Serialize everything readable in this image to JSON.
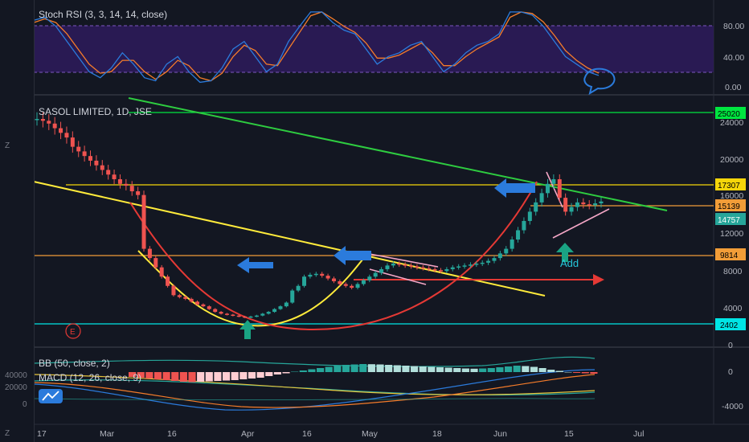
{
  "chart_data": {
    "type": "candlestick",
    "x_ticks": [
      "17",
      "Mar",
      "16",
      "Apr",
      "16",
      "May",
      "18",
      "Jun",
      "15",
      "Jul"
    ],
    "stoch_panel": {
      "title": "Stoch RSI (3, 3, 14, 14, close)",
      "y_ticks": [
        "80.00",
        "40.00",
        "0.00"
      ],
      "k": [
        88,
        92,
        80,
        60,
        40,
        20,
        12,
        25,
        45,
        30,
        12,
        8,
        30,
        40,
        20,
        6,
        8,
        25,
        50,
        60,
        40,
        20,
        30,
        60,
        80,
        99,
        99,
        85,
        75,
        70,
        50,
        30,
        40,
        45,
        55,
        60,
        40,
        20,
        30,
        45,
        55,
        60,
        70,
        99,
        99,
        95,
        80,
        60,
        40,
        30,
        20,
        15
      ],
      "d": [
        85,
        90,
        85,
        70,
        50,
        30,
        18,
        20,
        35,
        35,
        20,
        10,
        20,
        35,
        28,
        12,
        8,
        18,
        40,
        55,
        48,
        30,
        28,
        50,
        72,
        94,
        99,
        90,
        80,
        72,
        58,
        38,
        38,
        42,
        50,
        58,
        45,
        28,
        28,
        40,
        50,
        58,
        66,
        92,
        99,
        97,
        86,
        68,
        48,
        35,
        25,
        18
      ]
    },
    "price_panel": {
      "title": "SASOL LIMITED, 1D, JSE",
      "y_ticks": [
        "24000",
        "20000",
        "16000",
        "12000",
        "8000",
        "4000",
        "0"
      ],
      "price_labels": [
        {
          "text": "25020",
          "value": 25020,
          "color": "#00e640"
        },
        {
          "text": "17307",
          "value": 17307,
          "color": "#f5d60a"
        },
        {
          "text": "15139",
          "value": 15139,
          "color": "#f29d38"
        },
        {
          "text": "14757",
          "value": 14757,
          "color": "#26a69a"
        },
        {
          "text": "9814",
          "value": 9814,
          "color": "#f29d38"
        },
        {
          "text": "2402",
          "value": 2402,
          "color": "#00e5e5"
        }
      ],
      "annotations": [
        "Add",
        "E"
      ]
    },
    "bottom_panel": {
      "bb_title": "BB (50, close, 2)",
      "macd_title": "MACD (12, 26, close, 9)",
      "left_ticks": [
        "40000",
        "20000",
        "0"
      ],
      "right_ticks": [
        "0",
        "-4000"
      ],
      "histogram": [
        -600,
        -700,
        -800,
        -900,
        -1000,
        -1100,
        -1200,
        -1250,
        -1200,
        -1150,
        -1100,
        -1050,
        -1000,
        -900,
        -800,
        -700,
        -500,
        -300,
        -150,
        50,
        200,
        350,
        500,
        650,
        800,
        900,
        950,
        1000,
        980,
        950,
        900,
        850,
        800,
        750,
        700,
        650,
        600,
        550,
        500,
        450,
        420,
        450,
        500,
        600,
        700,
        800,
        750,
        650,
        500,
        300,
        150,
        0,
        -100,
        -150,
        -200
      ]
    }
  }
}
